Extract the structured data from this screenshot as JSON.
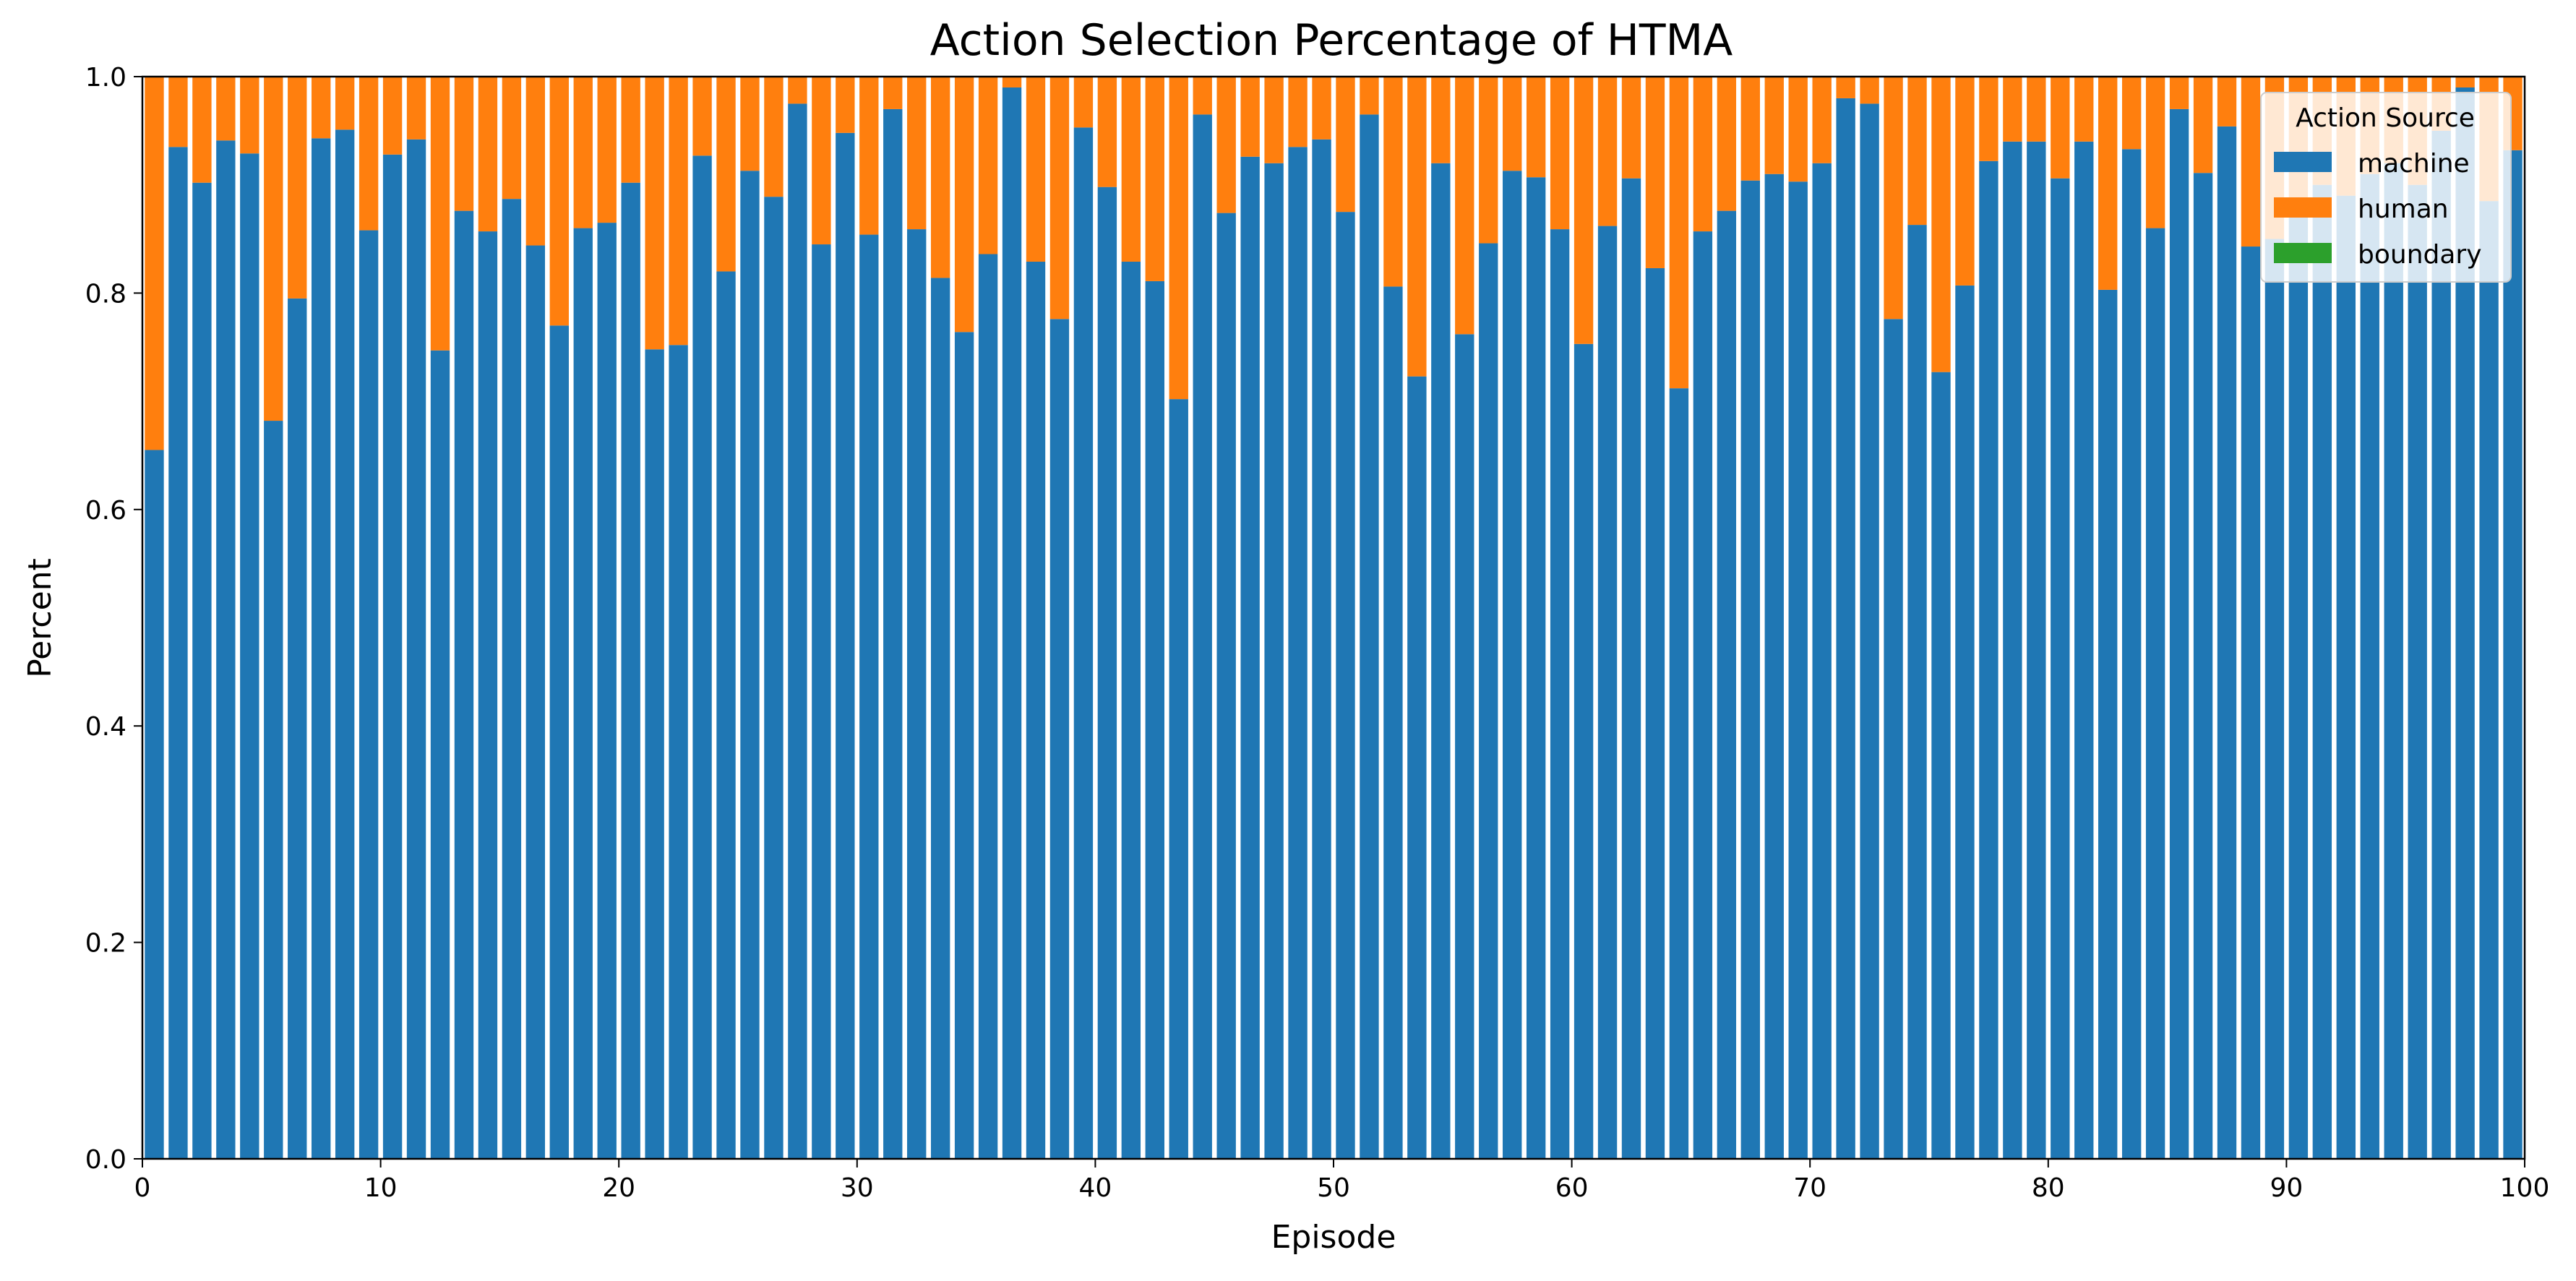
{
  "chart_data": {
    "type": "bar",
    "stacked": true,
    "title": "Action Selection Percentage of HTMA",
    "xlabel": "Episode",
    "ylabel": "Percent",
    "xlim": [
      0,
      100
    ],
    "ylim": [
      0,
      1.0
    ],
    "grid": false,
    "x_ticks": [
      0,
      10,
      20,
      30,
      40,
      50,
      60,
      70,
      80,
      90,
      100
    ],
    "y_ticks": [
      0.0,
      0.2,
      0.4,
      0.6,
      0.8,
      1.0
    ],
    "x_tick_labels": [
      "0",
      "10",
      "20",
      "30",
      "40",
      "50",
      "60",
      "70",
      "80",
      "90",
      "100"
    ],
    "y_tick_labels": [
      "0.0",
      "0.2",
      "0.4",
      "0.6",
      "0.8",
      "1.0"
    ],
    "legend": {
      "title": "Action Source",
      "placement": "top-right",
      "entries": [
        "machine",
        "human",
        "boundary"
      ]
    },
    "colors": {
      "machine": "#1f77b4",
      "human": "#ff7f0e",
      "boundary": "#2ca02c"
    },
    "episodes": [
      0,
      1,
      2,
      3,
      4,
      5,
      6,
      7,
      8,
      9,
      10,
      11,
      12,
      13,
      14,
      15,
      16,
      17,
      18,
      19,
      20,
      21,
      22,
      23,
      24,
      25,
      26,
      27,
      28,
      29,
      30,
      31,
      32,
      33,
      34,
      35,
      36,
      37,
      38,
      39,
      40,
      41,
      42,
      43,
      44,
      45,
      46,
      47,
      48,
      49,
      50,
      51,
      52,
      53,
      54,
      55,
      56,
      57,
      58,
      59,
      60,
      61,
      62,
      63,
      64,
      65,
      66,
      67,
      68,
      69,
      70,
      71,
      72,
      73,
      74,
      75,
      76,
      77,
      78,
      79,
      80,
      81,
      82,
      83,
      84,
      85,
      86,
      87,
      88,
      89,
      90,
      91,
      92,
      93,
      94,
      95,
      96,
      97,
      98,
      99
    ],
    "series": [
      {
        "name": "machine",
        "values": [
          0.655,
          0.935,
          0.902,
          0.941,
          0.929,
          0.682,
          0.795,
          0.943,
          0.951,
          0.858,
          0.928,
          0.942,
          0.747,
          0.876,
          0.857,
          0.887,
          0.844,
          0.77,
          0.86,
          0.865,
          0.902,
          0.748,
          0.752,
          0.927,
          0.82,
          0.913,
          0.889,
          0.975,
          0.845,
          0.948,
          0.854,
          0.97,
          0.859,
          0.814,
          0.764,
          0.836,
          0.99,
          0.829,
          0.776,
          0.953,
          0.898,
          0.829,
          0.811,
          0.702,
          0.965,
          0.874,
          0.926,
          0.92,
          0.935,
          0.942,
          0.875,
          0.965,
          0.806,
          0.723,
          0.92,
          0.762,
          0.846,
          0.913,
          0.907,
          0.859,
          0.753,
          0.862,
          0.906,
          0.823,
          0.712,
          0.857,
          0.876,
          0.904,
          0.91,
          0.903,
          0.92,
          0.98,
          0.975,
          0.776,
          0.863,
          0.727,
          0.807,
          0.922,
          0.94,
          0.94,
          0.906,
          0.94,
          0.803,
          0.933,
          0.86,
          0.97,
          0.911,
          0.954,
          0.843,
          0.85,
          0.88,
          0.9,
          0.89,
          0.91,
          0.92,
          0.9,
          0.95,
          0.99,
          0.885,
          0.932
        ]
      },
      {
        "name": "human",
        "values": [
          0.345,
          0.065,
          0.098,
          0.059,
          0.071,
          0.318,
          0.205,
          0.057,
          0.049,
          0.142,
          0.072,
          0.058,
          0.253,
          0.124,
          0.143,
          0.113,
          0.156,
          0.23,
          0.14,
          0.135,
          0.098,
          0.252,
          0.248,
          0.073,
          0.18,
          0.087,
          0.111,
          0.025,
          0.155,
          0.052,
          0.146,
          0.03,
          0.141,
          0.186,
          0.236,
          0.164,
          0.01,
          0.171,
          0.224,
          0.047,
          0.102,
          0.171,
          0.189,
          0.298,
          0.035,
          0.126,
          0.074,
          0.08,
          0.065,
          0.058,
          0.125,
          0.035,
          0.194,
          0.277,
          0.08,
          0.238,
          0.154,
          0.087,
          0.093,
          0.141,
          0.247,
          0.138,
          0.094,
          0.177,
          0.288,
          0.143,
          0.124,
          0.096,
          0.09,
          0.097,
          0.08,
          0.02,
          0.025,
          0.224,
          0.137,
          0.273,
          0.193,
          0.078,
          0.06,
          0.06,
          0.094,
          0.06,
          0.197,
          0.067,
          0.14,
          0.03,
          0.089,
          0.046,
          0.157,
          0.15,
          0.12,
          0.1,
          0.11,
          0.09,
          0.08,
          0.1,
          0.05,
          0.01,
          0.115,
          0.068
        ]
      },
      {
        "name": "boundary",
        "values": [
          0,
          0,
          0,
          0,
          0,
          0,
          0,
          0,
          0,
          0,
          0,
          0,
          0,
          0,
          0,
          0,
          0,
          0,
          0,
          0,
          0,
          0,
          0,
          0,
          0,
          0,
          0,
          0,
          0,
          0,
          0,
          0,
          0,
          0,
          0,
          0,
          0,
          0,
          0,
          0,
          0,
          0,
          0,
          0,
          0,
          0,
          0,
          0,
          0,
          0,
          0,
          0,
          0,
          0,
          0,
          0,
          0,
          0,
          0,
          0,
          0,
          0,
          0,
          0,
          0,
          0,
          0,
          0,
          0,
          0,
          0,
          0,
          0,
          0,
          0,
          0,
          0,
          0,
          0,
          0,
          0,
          0,
          0,
          0,
          0,
          0,
          0,
          0,
          0,
          0,
          0,
          0,
          0,
          0,
          0,
          0,
          0,
          0,
          0,
          0
        ]
      }
    ]
  }
}
